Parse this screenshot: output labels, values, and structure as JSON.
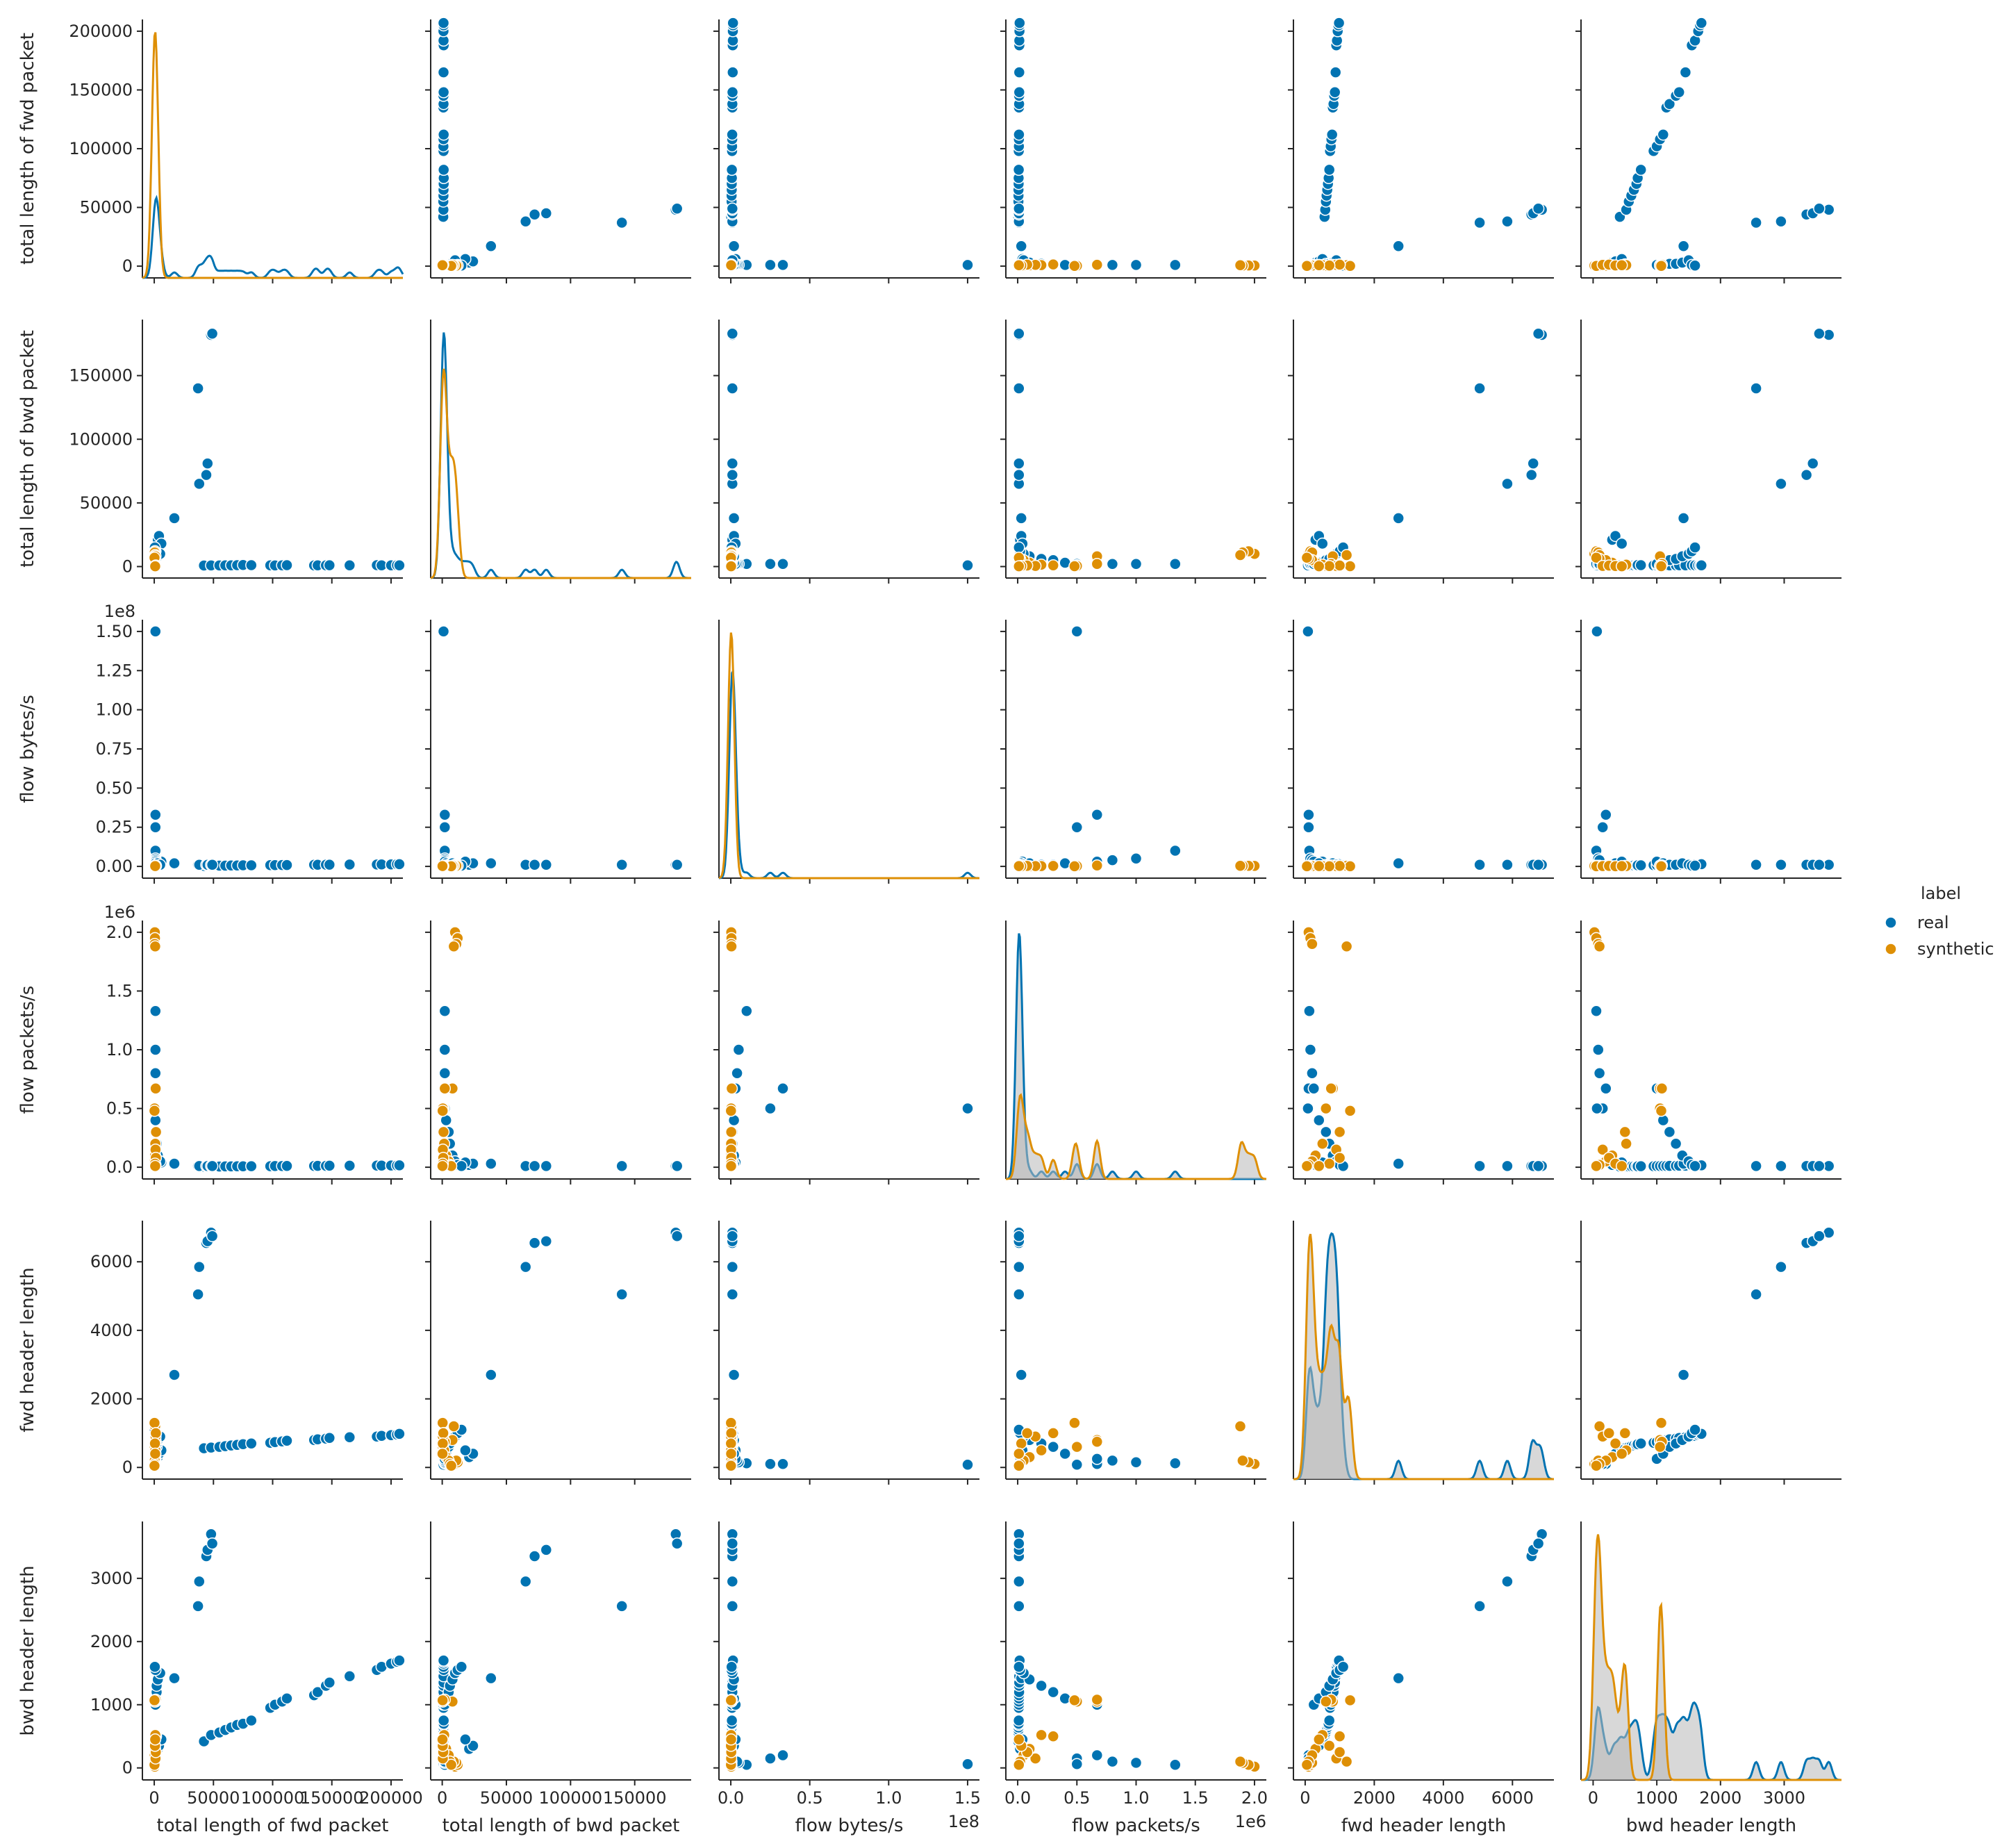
{
  "chart_data": {
    "type": "scatter",
    "subtype": "pairplot",
    "variables": [
      {
        "name": "total length of fwd packet",
        "range": [
          -10000,
          210000
        ],
        "ticks": [
          0,
          50000,
          100000,
          150000,
          200000
        ],
        "tick_labels_x": [
          "0",
          "50000",
          "100000",
          "150000",
          "200000"
        ],
        "tick_labels_y": [
          "0",
          "50000",
          "100000",
          "150000",
          "200000"
        ],
        "offset": ""
      },
      {
        "name": "total length of bwd packet",
        "range": [
          -9000,
          194000
        ],
        "ticks": [
          0,
          50000,
          100000,
          150000
        ],
        "tick_labels_x": [
          "0",
          "50000",
          "100000",
          "150000"
        ],
        "tick_labels_y": [
          "0",
          "50000",
          "100000",
          "150000"
        ],
        "offset": ""
      },
      {
        "name": "flow bytes/s",
        "range": [
          -0.075,
          1.575
        ],
        "ticks": [
          0,
          0.5,
          1.0,
          1.5
        ],
        "tick_labels_x": [
          "0.0",
          "0.5",
          "1.0",
          "1.5"
        ],
        "ticks_y": [
          0,
          0.25,
          0.5,
          0.75,
          1.0,
          1.25,
          1.5
        ],
        "tick_labels_y": [
          "0.00",
          "0.25",
          "0.50",
          "0.75",
          "1.00",
          "1.25",
          "1.50"
        ],
        "offset": "1e8"
      },
      {
        "name": "flow packets/s",
        "range": [
          -0.1,
          2.1
        ],
        "ticks": [
          0,
          0.5,
          1.0,
          1.5,
          2.0
        ],
        "tick_labels_x": [
          "0.0",
          "0.5",
          "1.0",
          "1.5",
          "2.0"
        ],
        "tick_labels_y": [
          "0.0",
          "0.5",
          "1.0",
          "1.5",
          "2.0"
        ],
        "offset": "1e6"
      },
      {
        "name": "fwd header length",
        "range": [
          -340,
          7200
        ],
        "ticks": [
          0,
          2000,
          4000,
          6000
        ],
        "tick_labels_x": [
          "0",
          "2000",
          "4000",
          "6000"
        ],
        "tick_labels_y": [
          "0",
          "2000",
          "4000",
          "6000"
        ],
        "offset": ""
      },
      {
        "name": "bwd header length",
        "range": [
          -190,
          3900
        ],
        "ticks": [
          0,
          1000,
          2000,
          3000
        ],
        "tick_labels_x": [
          "0",
          "1000",
          "2000",
          "3000"
        ],
        "tick_labels_y": [
          "0",
          "1000",
          "2000",
          "3000"
        ],
        "offset": ""
      }
    ],
    "legend": {
      "title": "label",
      "placement": "right",
      "entries": [
        {
          "name": "real",
          "color": "#0173b2"
        },
        {
          "name": "synthetic",
          "color": "#de8f05"
        }
      ]
    },
    "series": [
      {
        "name": "real",
        "color": "#0173b2",
        "columns": [
          "total length of fwd packet",
          "total length of bwd packet",
          "flow bytes/s",
          "flow packets/s",
          "fwd header length",
          "bwd header length"
        ],
        "points": [
          [
            42000,
            800,
            0.003,
            0.005,
            560,
            420
          ],
          [
            48000,
            900,
            0.004,
            0.006,
            580,
            520
          ],
          [
            55000,
            850,
            0.005,
            0.006,
            600,
            560
          ],
          [
            60000,
            950,
            0.005,
            0.007,
            620,
            600
          ],
          [
            65000,
            1000,
            0.006,
            0.007,
            640,
            640
          ],
          [
            70000,
            1100,
            0.006,
            0.008,
            660,
            680
          ],
          [
            75000,
            1200,
            0.007,
            0.008,
            680,
            700
          ],
          [
            82000,
            1100,
            0.007,
            0.009,
            700,
            750
          ],
          [
            98000,
            1000,
            0.008,
            0.009,
            720,
            950
          ],
          [
            102000,
            900,
            0.008,
            0.01,
            740,
            1000
          ],
          [
            108000,
            1000,
            0.009,
            0.01,
            760,
            1050
          ],
          [
            112000,
            1100,
            0.009,
            0.011,
            780,
            1100
          ],
          [
            135000,
            900,
            0.01,
            0.011,
            800,
            1150
          ],
          [
            138000,
            1000,
            0.01,
            0.012,
            820,
            1200
          ],
          [
            145000,
            950,
            0.011,
            0.012,
            840,
            1300
          ],
          [
            148000,
            1050,
            0.011,
            0.013,
            860,
            1350
          ],
          [
            165000,
            1000,
            0.012,
            0.013,
            880,
            1450
          ],
          [
            188000,
            1100,
            0.012,
            0.014,
            900,
            1550
          ],
          [
            192000,
            1000,
            0.013,
            0.014,
            920,
            1600
          ],
          [
            200000,
            950,
            0.013,
            0.015,
            940,
            1650
          ],
          [
            205000,
            1050,
            0.014,
            0.015,
            960,
            1680
          ],
          [
            207000,
            1000,
            0.014,
            0.016,
            980,
            1700
          ],
          [
            3000,
            21000,
            0.01,
            0.02,
            300,
            300
          ],
          [
            4000,
            24000,
            0.02,
            0.03,
            400,
            350
          ],
          [
            6000,
            18000,
            0.03,
            0.04,
            500,
            450
          ],
          [
            17000,
            38000,
            0.02,
            0.03,
            2700,
            1420
          ],
          [
            37000,
            140000,
            0.01,
            0.01,
            5050,
            2560
          ],
          [
            38000,
            65000,
            0.01,
            0.01,
            5850,
            2950
          ],
          [
            44000,
            72000,
            0.01,
            0.01,
            6550,
            3350
          ],
          [
            45000,
            81000,
            0.01,
            0.01,
            6600,
            3450
          ],
          [
            48000,
            182000,
            0.01,
            0.01,
            6850,
            3700
          ],
          [
            49000,
            183000,
            0.01,
            0.01,
            6750,
            3550
          ],
          [
            1000,
            2000,
            0.33,
            0.67,
            100,
            200
          ],
          [
            1000,
            2000,
            0.25,
            0.5,
            100,
            150
          ],
          [
            1000,
            1000,
            1.5,
            0.5,
            80,
            60
          ],
          [
            1000,
            2000,
            0.1,
            1.33,
            120,
            50
          ],
          [
            1000,
            2000,
            0.05,
            1.0,
            150,
            80
          ],
          [
            1000,
            2000,
            0.04,
            0.8,
            200,
            100
          ],
          [
            1000,
            2000,
            0.03,
            0.67,
            250,
            1000
          ],
          [
            1000,
            3000,
            0.02,
            0.4,
            400,
            1100
          ],
          [
            2000,
            5000,
            0.01,
            0.3,
            600,
            1200
          ],
          [
            2000,
            6000,
            0.01,
            0.2,
            700,
            1300
          ],
          [
            3000,
            8000,
            0.02,
            0.1,
            800,
            1400
          ],
          [
            5000,
            10000,
            0.01,
            0.05,
            900,
            1500
          ],
          [
            1000,
            12000,
            0.005,
            0.02,
            1000,
            1550
          ],
          [
            500,
            15000,
            0.005,
            0.01,
            1100,
            1600
          ]
        ]
      },
      {
        "name": "synthetic",
        "color": "#de8f05",
        "columns": [
          "total length of fwd packet",
          "total length of bwd packet",
          "flow bytes/s",
          "flow packets/s",
          "fwd header length",
          "bwd header length"
        ],
        "points": [
          [
            500,
            10000,
            0.003,
            2.0,
            100,
            20
          ],
          [
            600,
            12000,
            0.004,
            1.95,
            150,
            50
          ],
          [
            400,
            11000,
            0.003,
            1.9,
            200,
            80
          ],
          [
            800,
            9000,
            0.004,
            1.88,
            1200,
            100
          ],
          [
            1000,
            8000,
            0.005,
            0.67,
            800,
            1050
          ],
          [
            1200,
            2000,
            0.006,
            0.67,
            750,
            1080
          ],
          [
            300,
            500,
            0.002,
            0.5,
            600,
            1050
          ],
          [
            200,
            300,
            0.001,
            0.48,
            1300,
            1070
          ],
          [
            1500,
            1000,
            0.003,
            0.3,
            1000,
            500
          ],
          [
            900,
            1500,
            0.002,
            0.2,
            500,
            520
          ],
          [
            700,
            3000,
            0.001,
            0.1,
            300,
            300
          ],
          [
            400,
            5000,
            0.002,
            0.05,
            200,
            200
          ],
          [
            300,
            6000,
            0.001,
            0.02,
            100,
            100
          ],
          [
            200,
            7000,
            0.001,
            0.01,
            50,
            50
          ],
          [
            1100,
            500,
            0.002,
            0.15,
            900,
            150
          ],
          [
            1300,
            800,
            0.003,
            0.08,
            1000,
            250
          ],
          [
            600,
            400,
            0.001,
            0.03,
            700,
            350
          ],
          [
            800,
            200,
            0.002,
            0.01,
            400,
            450
          ]
        ]
      }
    ]
  }
}
